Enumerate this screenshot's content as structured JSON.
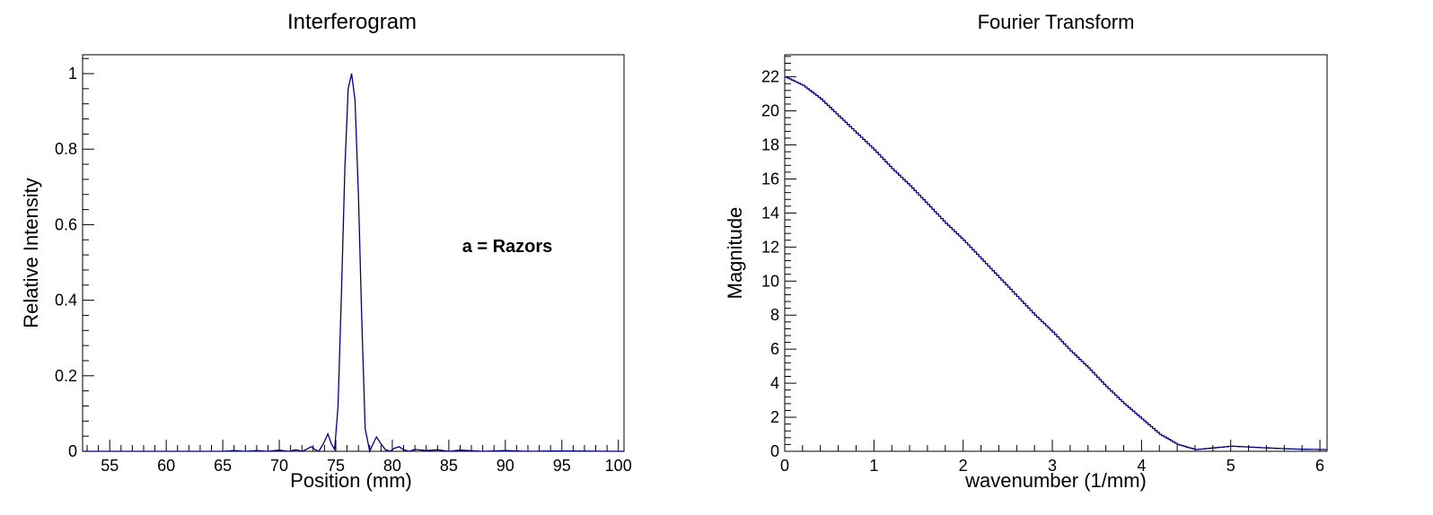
{
  "chart_data": [
    {
      "type": "line",
      "title": "Interferogram",
      "xlabel": "Position (mm)",
      "ylabel": "Relative Intensity",
      "annotation": "a = Razors",
      "xlim": [
        52.6,
        100.5
      ],
      "ylim": [
        0,
        1.05
      ],
      "xticks": [
        55,
        60,
        65,
        70,
        75,
        80,
        85,
        90,
        95,
        100
      ],
      "yticks": [
        0,
        0.2,
        0.4,
        0.6,
        0.8,
        1
      ],
      "ytick_labels": [
        "0",
        "0.2",
        "0.4",
        "0.6",
        "0.8",
        "1"
      ],
      "grid": false,
      "series": [
        {
          "color": "#000080",
          "x": [
            52.6,
            60,
            65,
            66,
            67,
            68,
            69,
            70,
            70.8,
            71.5,
            72,
            72.4,
            72.8,
            73.2,
            73.5,
            73.9,
            74.3,
            74.6,
            74.9,
            75.2,
            75.5,
            75.8,
            76.1,
            76.4,
            76.7,
            77.0,
            77.3,
            77.6,
            78.0,
            78.3,
            78.6,
            79.0,
            79.4,
            79.8,
            80.2,
            80.6,
            81.0,
            81.5,
            82,
            83,
            84,
            85,
            86,
            88,
            90,
            92,
            94,
            100.5
          ],
          "y": [
            0,
            0,
            0,
            0.002,
            0,
            0.002,
            0,
            0.003,
            0,
            0.004,
            0,
            0.005,
            0.012,
            0.004,
            0,
            0.02,
            0.046,
            0.02,
            0.005,
            0.12,
            0.42,
            0.75,
            0.96,
            1.0,
            0.93,
            0.68,
            0.35,
            0.06,
            0.0,
            0.02,
            0.038,
            0.02,
            0.004,
            0.0,
            0.008,
            0.012,
            0.004,
            0,
            0.005,
            0.002,
            0.004,
            0,
            0.003,
            0,
            0.002,
            0,
            0.001,
            0
          ]
        }
      ]
    },
    {
      "type": "line",
      "title": "Fourier Transform",
      "xlabel": "wavenumber (1/mm)",
      "ylabel": "Magnitude",
      "xlim": [
        0,
        6.08
      ],
      "ylim": [
        0,
        23.3
      ],
      "xticks": [
        0,
        1,
        2,
        3,
        4,
        5,
        6
      ],
      "yticks": [
        0,
        2,
        4,
        6,
        8,
        10,
        12,
        14,
        16,
        18,
        20,
        22
      ],
      "ytick_labels": [
        "0",
        "2",
        "4",
        "6",
        "8",
        "10",
        "12",
        "14",
        "16",
        "18",
        "20",
        "22"
      ],
      "grid": false,
      "step": true,
      "series": [
        {
          "color": "#000080",
          "x": [
            0,
            0.2,
            0.4,
            0.6,
            0.8,
            1.0,
            1.2,
            1.4,
            1.6,
            1.8,
            2.0,
            2.2,
            2.4,
            2.6,
            2.8,
            3.0,
            3.2,
            3.4,
            3.6,
            3.8,
            4.0,
            4.2,
            4.4,
            4.6,
            4.8,
            5.0,
            5.2,
            5.4,
            5.6,
            5.8,
            6.08
          ],
          "y": [
            22.0,
            21.5,
            20.7,
            19.7,
            18.7,
            17.7,
            16.6,
            15.6,
            14.5,
            13.4,
            12.4,
            11.3,
            10.2,
            9.1,
            8.0,
            7.0,
            5.9,
            4.9,
            3.8,
            2.8,
            1.9,
            1.0,
            0.4,
            0.1,
            0.2,
            0.3,
            0.25,
            0.2,
            0.15,
            0.12,
            0.1
          ]
        }
      ]
    }
  ]
}
